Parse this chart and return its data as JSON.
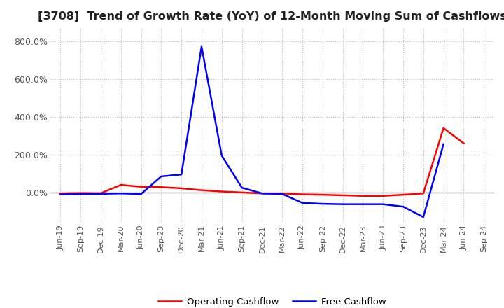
{
  "title": "[3708]  Trend of Growth Rate (YoY) of 12-Month Moving Sum of Cashflows",
  "x_labels": [
    "Jun-19",
    "Sep-19",
    "Dec-19",
    "Mar-20",
    "Jun-20",
    "Sep-20",
    "Dec-20",
    "Mar-21",
    "Jun-21",
    "Sep-21",
    "Dec-21",
    "Mar-22",
    "Jun-22",
    "Sep-22",
    "Dec-22",
    "Mar-23",
    "Jun-23",
    "Sep-23",
    "Dec-23",
    "Mar-24",
    "Jun-24",
    "Sep-24"
  ],
  "operating_cashflow": [
    -5.0,
    -3.0,
    -4.0,
    40.0,
    30.0,
    28.0,
    22.0,
    12.0,
    5.0,
    0.0,
    -5.0,
    -5.0,
    -10.0,
    -12.0,
    -15.0,
    -18.0,
    -18.0,
    -12.0,
    -5.0,
    340.0,
    260.0,
    null
  ],
  "free_cashflow": [
    -10.0,
    -8.0,
    -7.0,
    -5.0,
    -8.0,
    85.0,
    95.0,
    770.0,
    195.0,
    25.0,
    -5.0,
    -8.0,
    -55.0,
    -60.0,
    -62.0,
    -62.0,
    -62.0,
    -75.0,
    -130.0,
    255.0,
    null,
    null
  ],
  "ylim": [
    -155,
    870
  ],
  "yticks": [
    0,
    200,
    400,
    600,
    800
  ],
  "ytick_labels": [
    "0.0%",
    "200.0%",
    "400.0%",
    "600.0%",
    "800.0%"
  ],
  "operating_color": "#ff0000",
  "free_color": "#0000ff",
  "background_color": "#ffffff",
  "grid_color": "#bbbbbb",
  "title_fontsize": 11.5,
  "legend_labels": [
    "Operating Cashflow",
    "Free Cashflow"
  ],
  "zero_line_color": "#888888",
  "spine_color": "#cccccc"
}
